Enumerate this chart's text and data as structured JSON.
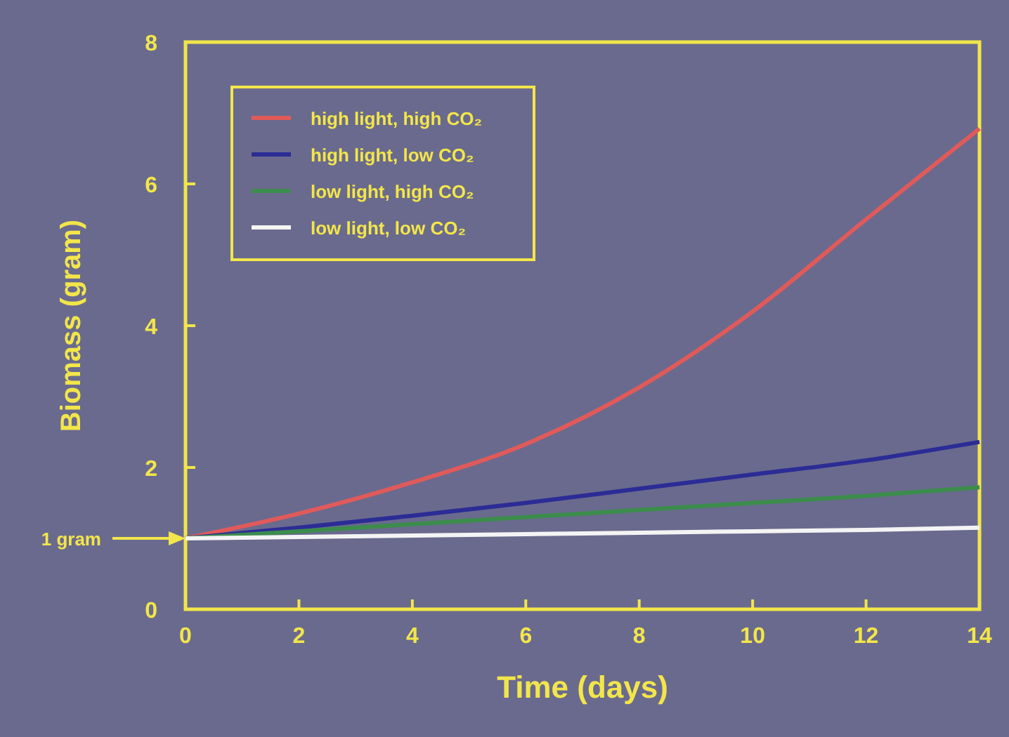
{
  "chart_data": {
    "type": "line",
    "xlabel": "Time (days)",
    "ylabel": "Biomass (gram)",
    "x": [
      0,
      2,
      4,
      6,
      8,
      10,
      12,
      14
    ],
    "series": [
      {
        "name": "high light, high CO₂",
        "color": "#e05a5a",
        "values": [
          1,
          1.35,
          1.79,
          2.33,
          3.13,
          4.2,
          5.5,
          6.78
        ]
      },
      {
        "name": "high light, low CO₂",
        "color": "#2c2c96",
        "values": [
          1,
          1.15,
          1.32,
          1.5,
          1.7,
          1.9,
          2.1,
          2.36
        ]
      },
      {
        "name": "low light, high CO₂",
        "color": "#3c8c4c",
        "values": [
          1,
          1.1,
          1.2,
          1.3,
          1.4,
          1.5,
          1.6,
          1.72
        ]
      },
      {
        "name": "low light, low CO₂",
        "color": "#f4f4f4",
        "values": [
          1,
          1.02,
          1.04,
          1.06,
          1.08,
          1.1,
          1.12,
          1.15
        ]
      }
    ],
    "xlim": [
      0,
      14
    ],
    "xticks": [
      0,
      2,
      4,
      6,
      8,
      10,
      12,
      14
    ],
    "ylim": [
      0,
      8
    ],
    "yticks": [
      0,
      2,
      4,
      6,
      8
    ],
    "annotations": [
      "1 gram"
    ],
    "legend": "top left",
    "grid": false,
    "marker": "none",
    "line_style": "solid"
  }
}
